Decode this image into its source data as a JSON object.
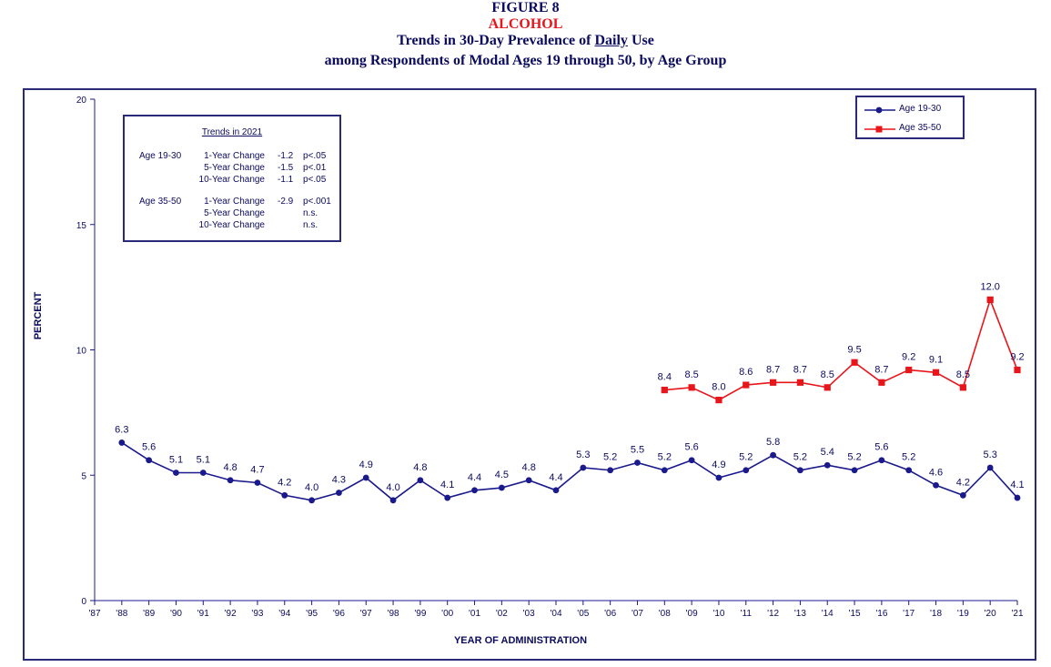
{
  "header": {
    "figure_number": "FIGURE 8",
    "substance": "ALCOHOL",
    "title_prefix": "Trends in 30-Day Prevalence of ",
    "title_emphasis": "Daily",
    "title_suffix": " Use",
    "subtitle": "among Respondents of Modal Ages 19 through 50, by Age Group"
  },
  "colors": {
    "navy": "#1a1a8c",
    "red": "#e8151b",
    "frame": "#2a2a7a"
  },
  "trends_box": {
    "title": "Trends in 2021",
    "rows": [
      {
        "group": "Age 19-30",
        "change": "1-Year Change",
        "value": "-1.2",
        "sig": "p<.05"
      },
      {
        "group": "",
        "change": "5-Year Change",
        "value": "-1.5",
        "sig": "p<.01"
      },
      {
        "group": "",
        "change": "10-Year Change",
        "value": "-1.1",
        "sig": "p<.05"
      },
      {
        "group": "Age 35-50",
        "change": "1-Year Change",
        "value": "-2.9",
        "sig": "p<.001"
      },
      {
        "group": "",
        "change": "5-Year Change",
        "value": "",
        "sig": "n.s."
      },
      {
        "group": "",
        "change": "10-Year Change",
        "value": "",
        "sig": "n.s."
      }
    ]
  },
  "chart_data": {
    "type": "line",
    "title": "Trends in 30-Day Prevalence of Daily Use",
    "xlabel": "YEAR OF ADMINISTRATION",
    "ylabel": "PERCENT",
    "ylim": [
      0,
      20
    ],
    "yticks": [
      0,
      5,
      10,
      15,
      20
    ],
    "categories": [
      "'87",
      "'88",
      "'89",
      "'90",
      "'91",
      "'92",
      "'93",
      "'94",
      "'95",
      "'96",
      "'97",
      "'98",
      "'99",
      "'00",
      "'01",
      "'02",
      "'03",
      "'04",
      "'05",
      "'06",
      "'07",
      "'08",
      "'09",
      "'10",
      "'11",
      "'12",
      "'13",
      "'14",
      "'15",
      "'16",
      "'17",
      "'18",
      "'19",
      "'20",
      "'21"
    ],
    "legend_position": "top-right",
    "series": [
      {
        "name": "Age 19-30",
        "color": "#1a1a8c",
        "marker": "circle",
        "values": [
          null,
          6.3,
          5.6,
          5.1,
          5.1,
          4.8,
          4.7,
          4.2,
          4.0,
          4.3,
          4.9,
          4.0,
          4.8,
          4.1,
          4.4,
          4.5,
          4.8,
          4.4,
          5.3,
          5.2,
          5.5,
          5.2,
          5.6,
          4.9,
          5.2,
          5.8,
          5.2,
          5.4,
          5.2,
          5.6,
          5.2,
          4.6,
          4.2,
          5.3,
          4.1
        ],
        "labels": [
          "",
          "6.3",
          "5.6",
          "5.1",
          "5.1",
          "4.8",
          "4.7",
          "4.2",
          "4.0",
          "4.3",
          "4.9",
          "4.0",
          "4.8",
          "4.1",
          "4.4",
          "4.5",
          "4.8",
          "4.4",
          "5.3",
          "5.2",
          "5.5",
          "5.2",
          "5.6",
          "4.9",
          "5.2",
          "5.8",
          "5.2",
          "5.4",
          "5.2",
          "5.6",
          "5.2",
          "4.6",
          "4.2",
          "5.3",
          "4.1"
        ]
      },
      {
        "name": "Age 35-50",
        "color": "#e8151b",
        "marker": "square",
        "values": [
          null,
          null,
          null,
          null,
          null,
          null,
          null,
          null,
          null,
          null,
          null,
          null,
          null,
          null,
          null,
          null,
          null,
          null,
          null,
          null,
          null,
          8.4,
          8.5,
          8.0,
          8.6,
          8.7,
          8.7,
          8.5,
          9.5,
          8.7,
          9.2,
          9.1,
          8.5,
          12.0,
          9.2
        ],
        "labels": [
          "",
          "",
          "",
          "",
          "",
          "",
          "",
          "",
          "",
          "",
          "",
          "",
          "",
          "",
          "",
          "",
          "",
          "",
          "",
          "",
          "",
          "8.4",
          "8.5",
          "8.0",
          "8.6",
          "8.7",
          "8.7",
          "8.5",
          "9.5",
          "8.7",
          "9.2",
          "9.1",
          "8.5",
          "12.0",
          "9.2"
        ]
      }
    ]
  }
}
